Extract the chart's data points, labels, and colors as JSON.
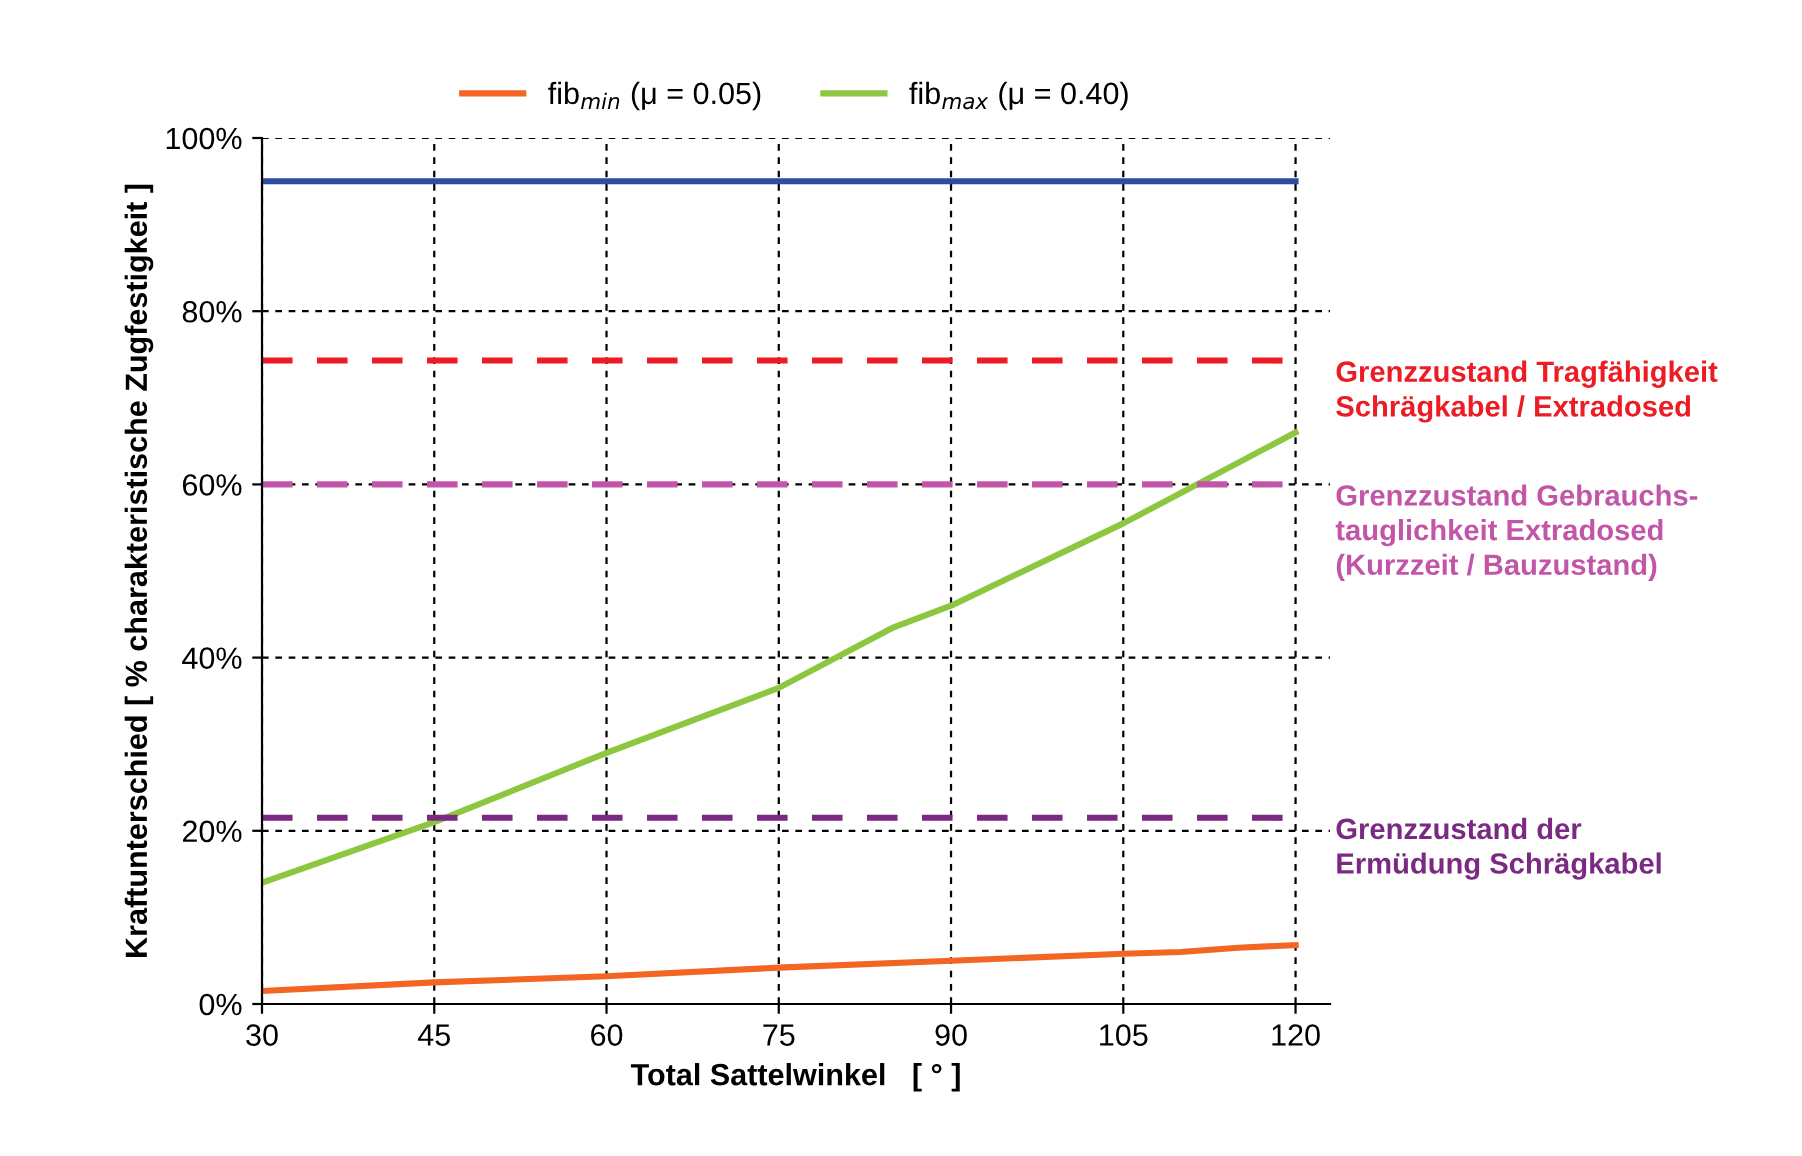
{
  "chart_data": {
    "type": "line",
    "xlabel": "Total Sattelwinkel   [ ° ]",
    "ylabel": "Kraftunterschied [ % charakteristische Zugfestigkeit ]",
    "xlim": [
      30,
      123
    ],
    "xticks": [
      30,
      45,
      60,
      75,
      90,
      105,
      120
    ],
    "ylim": [
      0,
      100
    ],
    "yticks": [
      {
        "value": 0,
        "label": "0%"
      },
      {
        "value": 20,
        "label": "20%"
      },
      {
        "value": 40,
        "label": "40%"
      },
      {
        "value": 60,
        "label": "60%"
      },
      {
        "value": 80,
        "label": "80%"
      },
      {
        "value": 100,
        "label": "100%"
      }
    ],
    "grid": true,
    "legend": "top",
    "line_style": "solid",
    "marker": "none",
    "series": [
      {
        "name": "fib$_{min}$ (μ = 0.05)",
        "color": "#f26522",
        "x": [
          30,
          45,
          60,
          75,
          90,
          105,
          110,
          115,
          120
        ],
        "values": [
          1.5,
          2.5,
          3.2,
          4.2,
          5.0,
          5.8,
          6.0,
          6.5,
          6.8
        ]
      },
      {
        "name": "fib$_{max}$ (μ = 0.40)",
        "color": "#8dc63f",
        "x": [
          30,
          45,
          60,
          75,
          85,
          90,
          105,
          120
        ],
        "values": [
          14,
          21,
          29,
          36.5,
          43.5,
          46,
          55.5,
          66
        ]
      },
      {
        "color": "#2e4da0",
        "x": [
          30,
          120
        ],
        "values": [
          95,
          95
        ]
      }
    ],
    "ref_lines": [
      {
        "axis": "y",
        "value": 74.3,
        "label": "Grenzzustand Tragfähigkeit\nSchrägkabel / Extradosed",
        "color": "#ed1c24",
        "line_style": "dashed"
      },
      {
        "axis": "y",
        "value": 60,
        "label": "Grenzzustand Gebrauchs-\ntauglichkeit Extradosed\n(Kurzzeit / Bauzustand)",
        "color": "#c355a8",
        "line_style": "dashed"
      },
      {
        "axis": "y",
        "value": 21.5,
        "label": "Grenzzustand der\nErmüdung Schrägkabel",
        "color": "#7b2a83",
        "line_style": "dashed"
      }
    ]
  }
}
